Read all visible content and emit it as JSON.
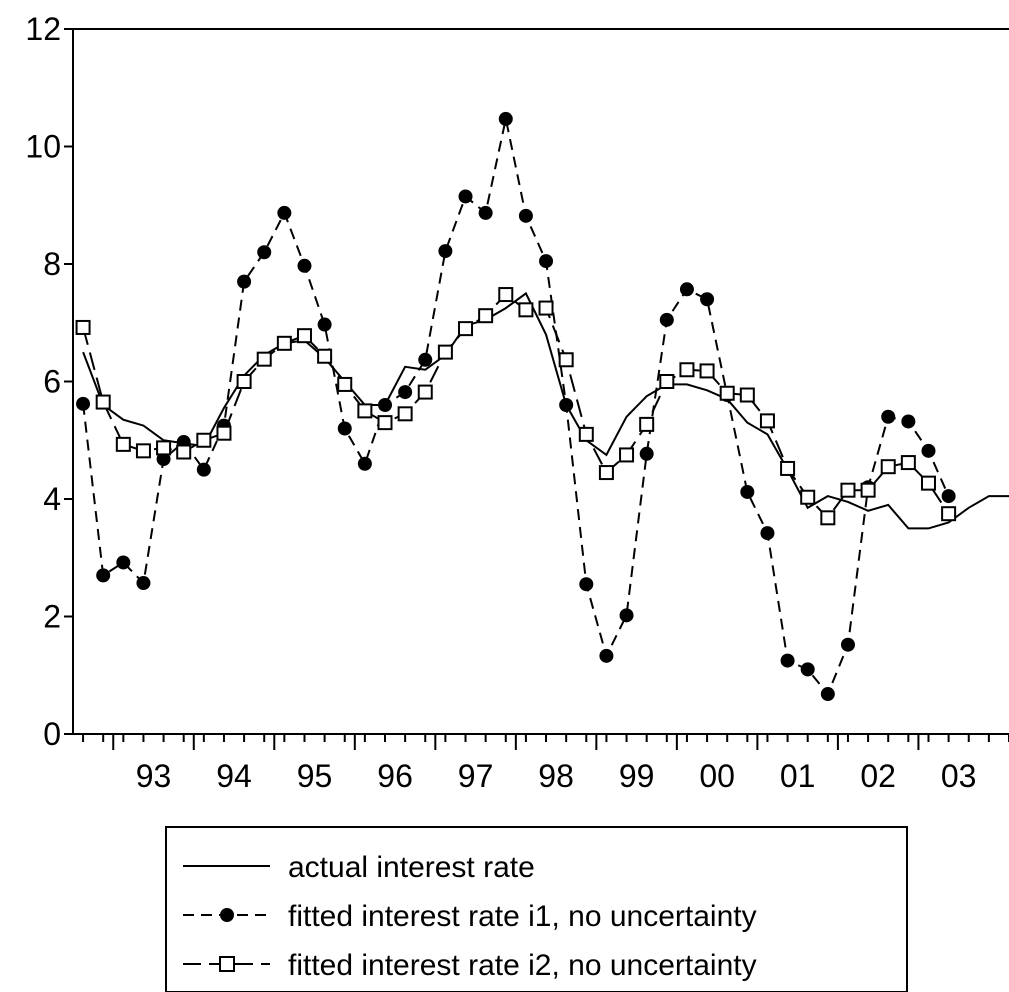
{
  "chart_data": {
    "type": "line",
    "title": "",
    "xlabel": "",
    "ylabel": "",
    "ylim": [
      0,
      12
    ],
    "yticks": [
      0,
      2,
      4,
      6,
      8,
      10,
      12
    ],
    "ytick_labels": [
      "0",
      "2",
      "4",
      "6",
      "8",
      "10",
      "12"
    ],
    "xlim": [
      1992.375,
      2004
    ],
    "xticks": [
      {
        "label": "93",
        "pos": 1993.0
      },
      {
        "label": "94",
        "pos": 1994.0
      },
      {
        "label": "95",
        "pos": 1995.0
      },
      {
        "label": "96",
        "pos": 1996.0
      },
      {
        "label": "97",
        "pos": 1997.0
      },
      {
        "label": "98",
        "pos": 1998.0
      },
      {
        "label": "99",
        "pos": 1999.0
      },
      {
        "label": "00",
        "pos": 2000.0
      },
      {
        "label": "01",
        "pos": 2001.0
      },
      {
        "label": "02",
        "pos": 2002.0
      },
      {
        "label": "03",
        "pos": 2003.0
      }
    ],
    "grid": false,
    "legend": "bottom-center",
    "series": [
      {
        "name": "actual interest rate",
        "style": "solid",
        "marker": "none",
        "x": [
          1992.5,
          1992.75,
          1993.0,
          1993.25,
          1993.5,
          1993.75,
          1994.0,
          1994.25,
          1994.5,
          1994.75,
          1995.0,
          1995.25,
          1995.5,
          1995.75,
          1996.0,
          1996.25,
          1996.5,
          1996.75,
          1997.0,
          1997.25,
          1997.5,
          1997.75,
          1998.0,
          1998.25,
          1998.5,
          1998.75,
          1999.0,
          1999.25,
          1999.5,
          1999.75,
          2000.0,
          2000.25,
          2000.5,
          2000.75,
          2001.0,
          2001.25,
          2001.5,
          2001.75,
          2002.0,
          2002.25,
          2002.5,
          2002.75,
          2003.0,
          2003.25,
          2003.5,
          2003.75,
          2004.0
        ],
        "values": [
          6.5,
          5.6,
          5.35,
          5.25,
          5.0,
          4.95,
          4.9,
          5.55,
          6.1,
          6.45,
          6.65,
          6.7,
          6.4,
          6.0,
          5.6,
          5.6,
          6.25,
          6.2,
          6.45,
          6.95,
          7.05,
          7.25,
          7.5,
          6.8,
          5.6,
          5.0,
          4.75,
          5.4,
          5.75,
          5.95,
          5.95,
          5.85,
          5.7,
          5.3,
          5.1,
          4.5,
          3.85,
          4.05,
          3.95,
          3.8,
          3.9,
          3.5,
          3.5,
          3.6,
          3.85,
          4.05,
          4.05
        ]
      },
      {
        "name": "fitted interest rate i1, no uncertainty",
        "style": "dashed",
        "marker": "filled-circle",
        "x": [
          1992.5,
          1992.75,
          1993.0,
          1993.25,
          1993.5,
          1993.75,
          1994.0,
          1994.25,
          1994.5,
          1994.75,
          1995.0,
          1995.25,
          1995.5,
          1995.75,
          1996.0,
          1996.25,
          1996.5,
          1996.75,
          1997.0,
          1997.25,
          1997.5,
          1997.75,
          1998.0,
          1998.25,
          1998.5,
          1998.75,
          1999.0,
          1999.25,
          1999.5,
          1999.75,
          2000.0,
          2000.25,
          2000.5,
          2000.75,
          2001.0,
          2001.25,
          2001.5,
          2001.75,
          2002.0,
          2002.25,
          2002.5,
          2002.75,
          2003.0,
          2003.25
        ],
        "values": [
          5.62,
          2.7,
          2.92,
          2.57,
          4.68,
          4.97,
          4.5,
          5.25,
          7.7,
          8.2,
          8.87,
          7.97,
          6.97,
          5.2,
          4.6,
          5.6,
          5.82,
          6.37,
          8.22,
          9.15,
          8.87,
          10.47,
          8.82,
          8.05,
          5.6,
          2.55,
          1.33,
          2.02,
          4.77,
          7.05,
          7.57,
          7.4,
          5.77,
          4.12,
          3.42,
          1.25,
          1.1,
          0.68,
          1.52,
          4.2,
          5.4,
          5.32,
          4.82,
          4.05
        ]
      },
      {
        "name": "fitted interest rate i2, no uncertainty",
        "style": "longdash",
        "marker": "open-square",
        "x": [
          1992.5,
          1992.75,
          1993.0,
          1993.25,
          1993.5,
          1993.75,
          1994.0,
          1994.25,
          1994.5,
          1994.75,
          1995.0,
          1995.25,
          1995.5,
          1995.75,
          1996.0,
          1996.25,
          1996.5,
          1996.75,
          1997.0,
          1997.25,
          1997.5,
          1997.75,
          1998.0,
          1998.25,
          1998.5,
          1998.75,
          1999.0,
          1999.25,
          1999.5,
          1999.75,
          2000.0,
          2000.25,
          2000.5,
          2000.75,
          2001.0,
          2001.25,
          2001.5,
          2001.75,
          2002.0,
          2002.25,
          2002.5,
          2002.75,
          2003.0,
          2003.25
        ],
        "values": [
          6.92,
          5.65,
          4.93,
          4.82,
          4.87,
          4.8,
          5.0,
          5.12,
          6.0,
          6.38,
          6.65,
          6.78,
          6.43,
          5.95,
          5.5,
          5.3,
          5.45,
          5.82,
          6.5,
          6.9,
          7.12,
          7.48,
          7.22,
          7.25,
          6.37,
          5.1,
          4.45,
          4.75,
          5.27,
          6.0,
          6.2,
          6.18,
          5.8,
          5.77,
          5.33,
          4.52,
          4.03,
          3.68,
          4.15,
          4.15,
          4.55,
          4.62,
          4.27,
          3.75
        ]
      }
    ]
  }
}
